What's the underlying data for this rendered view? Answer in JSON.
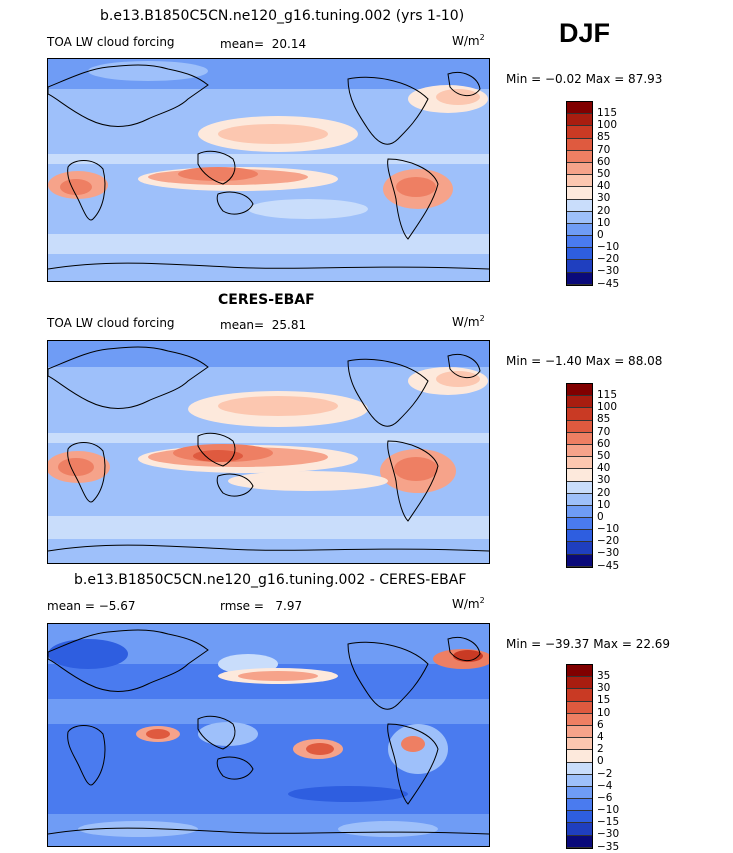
{
  "season": "DJF",
  "colors": {
    "levels_fill": [
      "#0a0a7a",
      "#1f3fbf",
      "#2e5ee0",
      "#4a7bef",
      "#6f9cf5",
      "#9ec0fa",
      "#c9ddfb",
      "#fde9dc",
      "#fcc7b0",
      "#f6a38a",
      "#ee7f63",
      "#df5a3f",
      "#c93a24",
      "#a81d10",
      "#800000"
    ],
    "outline": "#000000",
    "background": "#ffffff"
  },
  "panels": [
    {
      "title": "b.e13.B1850C5CN.ne120_g16.tuning.002 (yrs 1-10)",
      "left_label": "TOA LW cloud forcing",
      "stat_label": "mean=",
      "stat_value": "20.14",
      "units": "W/m",
      "units_exp": "2",
      "minmax": "Min =  −0.02 Max =  87.93",
      "colorbar": [
        "115",
        "100",
        "85",
        "70",
        "60",
        "50",
        "40",
        "30",
        "20",
        "10",
        "0",
        "−10",
        "−20",
        "−30",
        "−45"
      ]
    },
    {
      "title": "CERES-EBAF",
      "left_label": "TOA LW cloud forcing",
      "stat_label": "mean=",
      "stat_value": "25.81",
      "units": "W/m",
      "units_exp": "2",
      "minmax": "Min =  −1.40 Max =  88.08",
      "colorbar": [
        "115",
        "100",
        "85",
        "70",
        "60",
        "50",
        "40",
        "30",
        "20",
        "10",
        "0",
        "−10",
        "−20",
        "−30",
        "−45"
      ]
    },
    {
      "title": "b.e13.B1850C5CN.ne120_g16.tuning.002 - CERES-EBAF",
      "left_label": "mean =  −5.67",
      "stat_label": "rmse =",
      "stat_value": "7.97",
      "units": "W/m",
      "units_exp": "2",
      "minmax": "Min = −39.37 Max =  22.69",
      "colorbar": [
        "35",
        "30",
        "15",
        "10",
        "6",
        "4",
        "2",
        "0",
        "−2",
        "−4",
        "−6",
        "−10",
        "−15",
        "−30",
        "−35"
      ]
    }
  ]
}
